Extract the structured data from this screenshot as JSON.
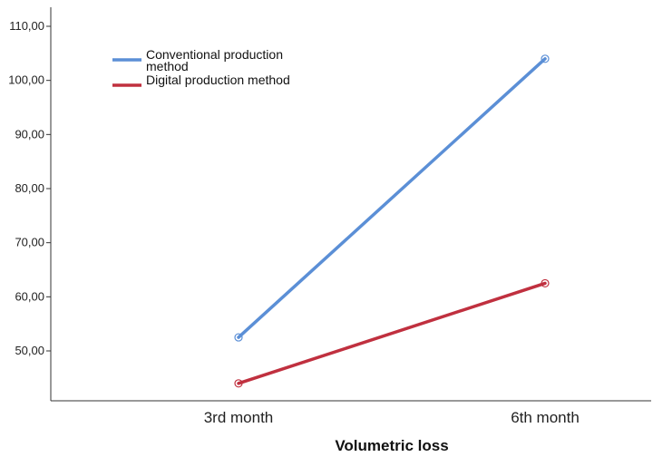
{
  "chart_data": {
    "type": "line",
    "xlabel": "Volumetric loss",
    "ylabel": "",
    "categories": [
      "3rd month",
      "6th month"
    ],
    "ylim": [
      43,
      112
    ],
    "yticks": [
      50,
      60,
      70,
      80,
      90,
      100,
      110
    ],
    "ytick_labels": [
      "50,00",
      "60,00",
      "70,00",
      "80,00",
      "90,00",
      "100,00",
      "110,00"
    ],
    "legend_position": "top-left",
    "grid": false,
    "series": [
      {
        "name": "Conventional production method",
        "legend_lines": [
          "Conventional production",
          "method"
        ],
        "color": "#5b8fd6",
        "values": [
          52.5,
          104.0
        ]
      },
      {
        "name": "Digital production method",
        "legend_lines": [
          "Digital production method"
        ],
        "color": "#c0303f",
        "values": [
          44.0,
          62.5
        ]
      }
    ]
  }
}
